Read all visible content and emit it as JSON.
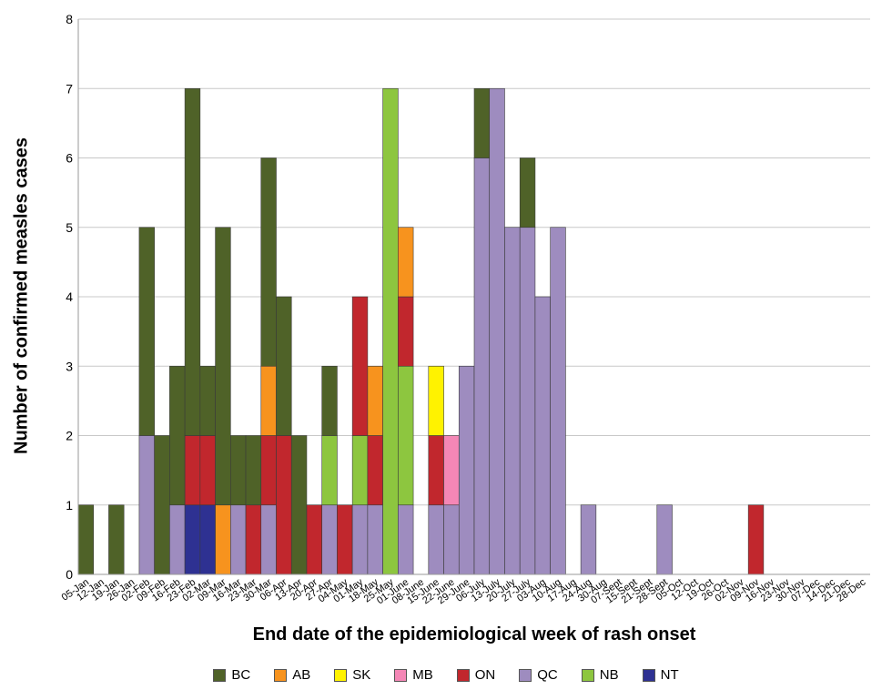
{
  "chart_data": {
    "type": "bar",
    "stacked": true,
    "xlabel": "End date of the epidemiological week of rash onset",
    "ylabel": "Number of confirmed measles cases",
    "ylim": [
      0,
      8
    ],
    "yticks": [
      0,
      1,
      2,
      3,
      4,
      5,
      6,
      7,
      8
    ],
    "grid": "horizontal",
    "legend_position": "bottom",
    "categories": [
      "05-Jan",
      "12-Jan",
      "19-Jan",
      "26-Jan",
      "02-Feb",
      "09-Feb",
      "16-Feb",
      "23-Feb",
      "02-Mar",
      "09-Mar",
      "16-Mar",
      "23-Mar",
      "30-Mar",
      "06-Apr",
      "13-Apr",
      "20-Apr",
      "27-Apr",
      "04-May",
      "01-May",
      "18-May",
      "25-May",
      "01-June",
      "08-June",
      "15-June",
      "22-June",
      "29-June",
      "06-July",
      "13-July",
      "20-July",
      "27-July",
      "03-Aug",
      "10-Aug",
      "17-Aug",
      "24-Aug",
      "30-Aug",
      "07-Sept",
      "15-Sept",
      "21-Sept",
      "28-Sept",
      "05-Oct",
      "12-Oct",
      "19-Oct",
      "26-Oct",
      "02-Nov",
      "09-Nov",
      "16-Nov",
      "23-Nov",
      "30-Nov",
      "07-Dec",
      "14-Dec",
      "21-Dec",
      "28-Dec"
    ],
    "series": [
      {
        "name": "NT",
        "color": "#2e3192",
        "values": [
          0,
          0,
          0,
          0,
          0,
          0,
          0,
          1,
          1,
          0,
          0,
          0,
          0,
          0,
          0,
          0,
          0,
          0,
          0,
          0,
          0,
          0,
          0,
          0,
          0,
          0,
          0,
          0,
          0,
          0,
          0,
          0,
          0,
          0,
          0,
          0,
          0,
          0,
          0,
          0,
          0,
          0,
          0,
          0,
          0,
          0,
          0,
          0,
          0,
          0,
          0,
          0
        ]
      },
      {
        "name": "QC",
        "color": "#9e8cbf",
        "values": [
          0,
          0,
          0,
          0,
          2,
          0,
          1,
          0,
          0,
          0,
          1,
          0,
          1,
          0,
          0,
          0,
          1,
          0,
          1,
          1,
          0,
          1,
          0,
          1,
          1,
          3,
          6,
          7,
          5,
          5,
          4,
          5,
          0,
          1,
          0,
          0,
          0,
          0,
          1,
          0,
          0,
          0,
          0,
          0,
          0,
          0,
          0,
          0,
          0,
          0,
          0,
          0
        ]
      },
      {
        "name": "NB",
        "color": "#8dc63f",
        "values": [
          0,
          0,
          0,
          0,
          0,
          0,
          0,
          0,
          0,
          0,
          0,
          0,
          0,
          0,
          0,
          0,
          1,
          0,
          1,
          0,
          7,
          2,
          0,
          0,
          0,
          0,
          0,
          0,
          0,
          0,
          0,
          0,
          0,
          0,
          0,
          0,
          0,
          0,
          0,
          0,
          0,
          0,
          0,
          0,
          0,
          0,
          0,
          0,
          0,
          0,
          0,
          0
        ]
      },
      {
        "name": "ON",
        "color": "#c1272d",
        "values": [
          0,
          0,
          0,
          0,
          0,
          0,
          0,
          1,
          1,
          0,
          0,
          1,
          1,
          2,
          0,
          1,
          0,
          1,
          2,
          1,
          0,
          1,
          0,
          1,
          0,
          0,
          0,
          0,
          0,
          0,
          0,
          0,
          0,
          0,
          0,
          0,
          0,
          0,
          0,
          0,
          0,
          0,
          0,
          0,
          1,
          0,
          0,
          0,
          0,
          0,
          0,
          0
        ]
      },
      {
        "name": "AB",
        "color": "#f7931e",
        "values": [
          0,
          0,
          0,
          0,
          0,
          0,
          0,
          0,
          0,
          1,
          0,
          0,
          1,
          0,
          0,
          0,
          0,
          0,
          0,
          1,
          0,
          1,
          0,
          0,
          0,
          0,
          0,
          0,
          0,
          0,
          0,
          0,
          0,
          0,
          0,
          0,
          0,
          0,
          0,
          0,
          0,
          0,
          0,
          0,
          0,
          0,
          0,
          0,
          0,
          0,
          0,
          0
        ]
      },
      {
        "name": "SK",
        "color": "#fff200",
        "values": [
          0,
          0,
          0,
          0,
          0,
          0,
          0,
          0,
          0,
          0,
          0,
          0,
          0,
          0,
          0,
          0,
          0,
          0,
          0,
          0,
          0,
          0,
          0,
          1,
          0,
          0,
          0,
          0,
          0,
          0,
          0,
          0,
          0,
          0,
          0,
          0,
          0,
          0,
          0,
          0,
          0,
          0,
          0,
          0,
          0,
          0,
          0,
          0,
          0,
          0,
          0,
          0
        ]
      },
      {
        "name": "MB",
        "color": "#f487b6",
        "values": [
          0,
          0,
          0,
          0,
          0,
          0,
          0,
          0,
          0,
          0,
          0,
          0,
          0,
          0,
          0,
          0,
          0,
          0,
          0,
          0,
          0,
          0,
          0,
          0,
          1,
          0,
          0,
          0,
          0,
          0,
          0,
          0,
          0,
          0,
          0,
          0,
          0,
          0,
          0,
          0,
          0,
          0,
          0,
          0,
          0,
          0,
          0,
          0,
          0,
          0,
          0,
          0
        ]
      },
      {
        "name": "BC",
        "color": "#4f6228",
        "values": [
          1,
          0,
          1,
          0,
          3,
          2,
          2,
          5,
          1,
          4,
          1,
          1,
          3,
          2,
          2,
          0,
          1,
          0,
          0,
          0,
          0,
          0,
          0,
          0,
          0,
          0,
          1,
          0,
          0,
          1,
          0,
          0,
          0,
          0,
          0,
          0,
          0,
          0,
          0,
          0,
          0,
          0,
          0,
          0,
          0,
          0,
          0,
          0,
          0,
          0,
          0,
          0
        ]
      }
    ],
    "legend": [
      {
        "name": "BC",
        "color": "#4f6228"
      },
      {
        "name": "AB",
        "color": "#f7931e"
      },
      {
        "name": "SK",
        "color": "#fff200"
      },
      {
        "name": "MB",
        "color": "#f487b6"
      },
      {
        "name": "ON",
        "color": "#c1272d"
      },
      {
        "name": "QC",
        "color": "#9e8cbf"
      },
      {
        "name": "NB",
        "color": "#8dc63f"
      },
      {
        "name": "NT",
        "color": "#2e3192"
      }
    ]
  }
}
